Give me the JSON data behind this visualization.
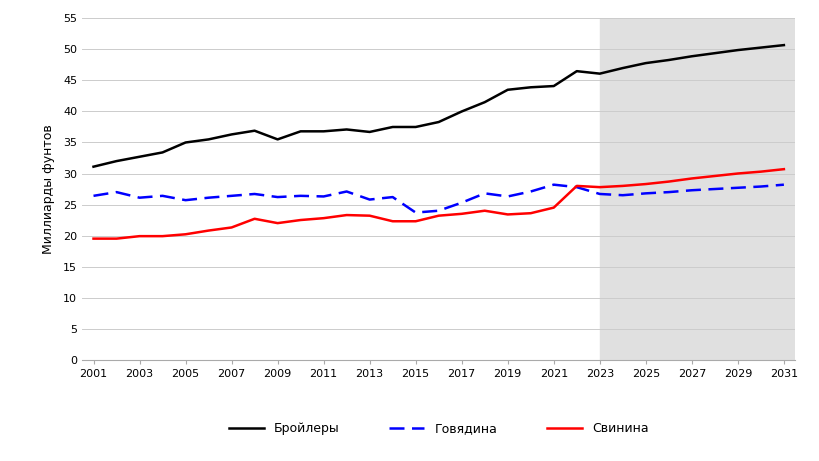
{
  "title": "",
  "ylabel": "Миллиарды фунтов",
  "ylim": [
    0,
    55
  ],
  "yticks": [
    0,
    5,
    10,
    15,
    20,
    25,
    30,
    35,
    40,
    45,
    50,
    55
  ],
  "xlim": [
    2001,
    2031
  ],
  "xticks": [
    2001,
    2003,
    2005,
    2007,
    2009,
    2011,
    2013,
    2015,
    2017,
    2019,
    2021,
    2023,
    2025,
    2027,
    2029,
    2031
  ],
  "forecast_start": 2023,
  "forecast_color": "#e0e0e0",
  "broilers": {
    "years": [
      2001,
      2002,
      2003,
      2004,
      2005,
      2006,
      2007,
      2008,
      2009,
      2010,
      2011,
      2012,
      2013,
      2014,
      2015,
      2016,
      2017,
      2018,
      2019,
      2020,
      2021,
      2022,
      2023,
      2024,
      2025,
      2026,
      2027,
      2028,
      2029,
      2030,
      2031
    ],
    "values": [
      31.1,
      32.0,
      32.7,
      33.4,
      35.0,
      35.5,
      36.3,
      36.9,
      35.5,
      36.8,
      36.8,
      37.1,
      36.7,
      37.5,
      37.5,
      38.3,
      40.0,
      41.5,
      43.5,
      43.9,
      44.1,
      46.5,
      46.1,
      47.0,
      47.8,
      48.3,
      48.9,
      49.4,
      49.9,
      50.3,
      50.7
    ],
    "color": "#000000",
    "linestyle": "-",
    "linewidth": 1.8,
    "label": "Бройлеры"
  },
  "beef": {
    "years": [
      2001,
      2002,
      2003,
      2004,
      2005,
      2006,
      2007,
      2008,
      2009,
      2010,
      2011,
      2012,
      2013,
      2014,
      2015,
      2016,
      2017,
      2018,
      2019,
      2020,
      2021,
      2022,
      2023,
      2024,
      2025,
      2026,
      2027,
      2028,
      2029,
      2030,
      2031
    ],
    "values": [
      26.4,
      27.0,
      26.1,
      26.4,
      25.7,
      26.1,
      26.4,
      26.7,
      26.2,
      26.4,
      26.3,
      27.1,
      25.8,
      26.2,
      23.7,
      24.0,
      25.3,
      26.8,
      26.3,
      27.1,
      28.2,
      27.8,
      26.7,
      26.5,
      26.8,
      27.0,
      27.3,
      27.5,
      27.7,
      27.9,
      28.2
    ],
    "color": "#0000ff",
    "linestyle": "--",
    "linewidth": 1.8,
    "label": "Говядина"
  },
  "pork": {
    "years": [
      2001,
      2002,
      2003,
      2004,
      2005,
      2006,
      2007,
      2008,
      2009,
      2010,
      2011,
      2012,
      2013,
      2014,
      2015,
      2016,
      2017,
      2018,
      2019,
      2020,
      2021,
      2022,
      2023,
      2024,
      2025,
      2026,
      2027,
      2028,
      2029,
      2030,
      2031
    ],
    "values": [
      19.5,
      19.5,
      19.9,
      19.9,
      20.2,
      20.8,
      21.3,
      22.7,
      22.0,
      22.5,
      22.8,
      23.3,
      23.2,
      22.3,
      22.3,
      23.2,
      23.5,
      24.0,
      23.4,
      23.6,
      24.5,
      28.0,
      27.8,
      28.0,
      28.3,
      28.7,
      29.2,
      29.6,
      30.0,
      30.3,
      30.7
    ],
    "color": "#ff0000",
    "linestyle": "-",
    "linewidth": 1.8,
    "label": "Свинина"
  },
  "background_color": "#ffffff",
  "grid_color": "#cccccc",
  "font_size_ylabel": 9,
  "font_size_ticks": 8,
  "font_size_legend": 9
}
